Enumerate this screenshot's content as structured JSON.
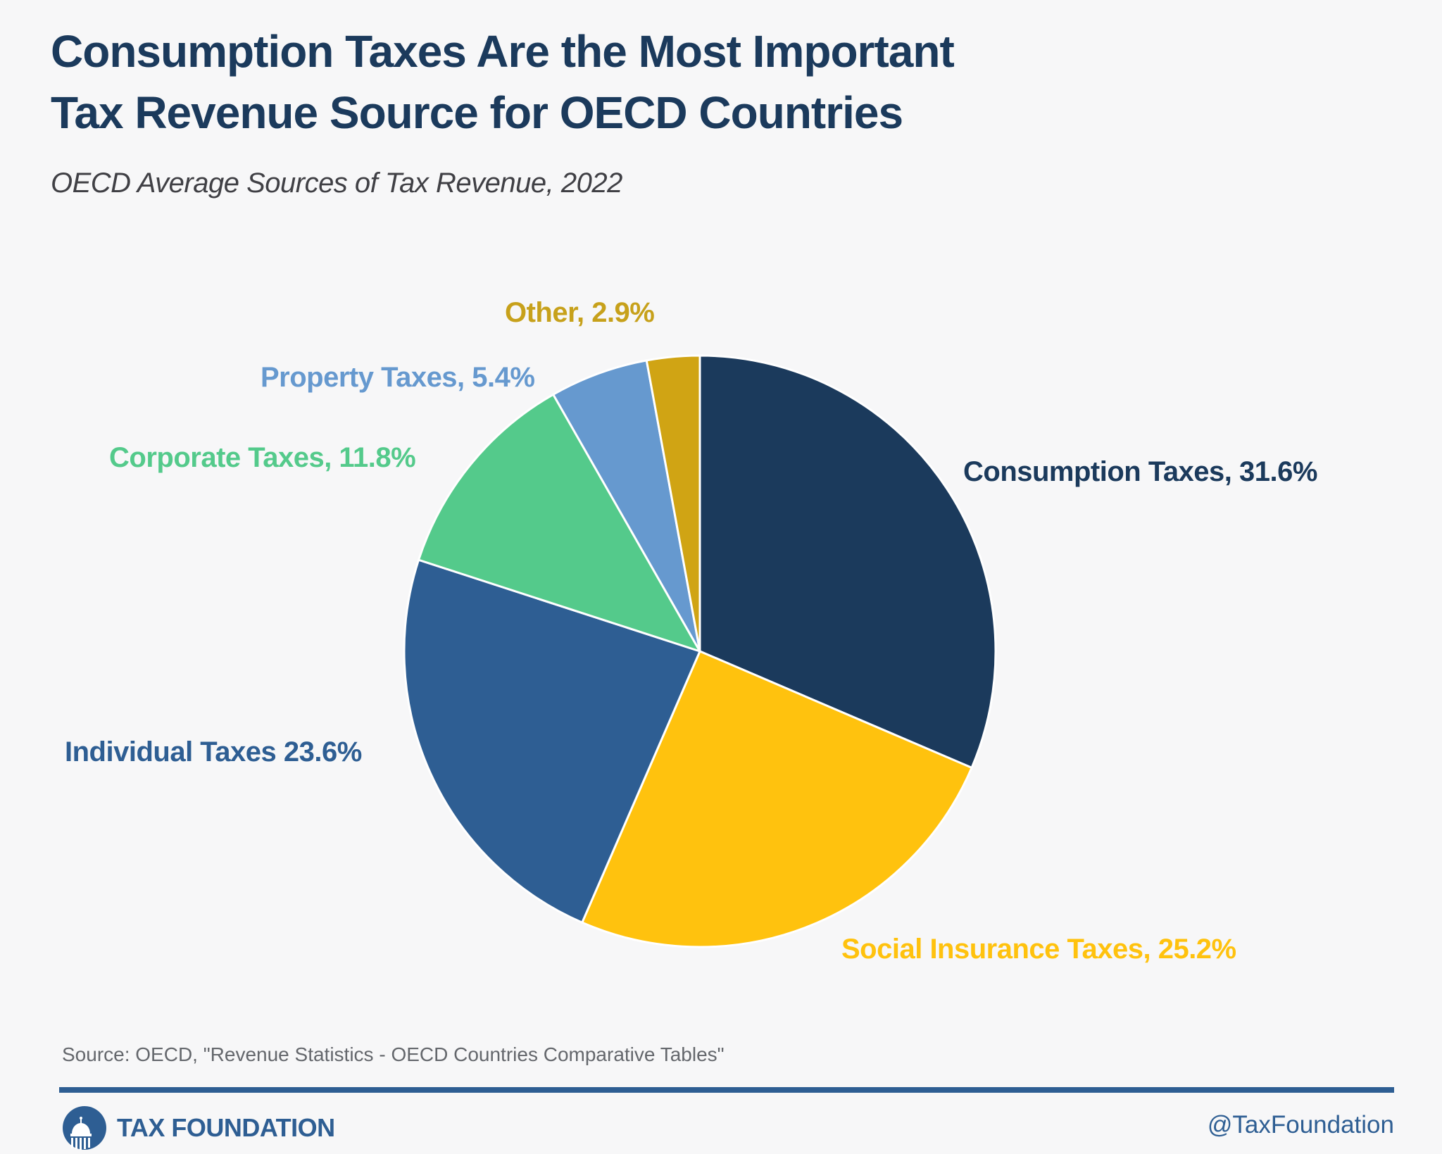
{
  "header": {
    "title_line1": "Consumption Taxes Are the Most Important",
    "title_line2": "Tax Revenue Source for OECD Countries",
    "subtitle": "OECD Average Sources of Tax Revenue, 2022"
  },
  "chart_data": {
    "type": "pie",
    "title": "OECD Average Sources of Tax Revenue, 2022",
    "unit": "percent",
    "start_angle_deg": -90,
    "direction": "clockwise",
    "legend_position": "labels-around-pie",
    "slices": [
      {
        "name": "Consumption Taxes",
        "value": 31.6,
        "display": "Consumption Taxes, 31.6%",
        "color": "#1B3A5C",
        "label_color": "#1B3A5C"
      },
      {
        "name": "Social Insurance Taxes",
        "value": 25.2,
        "display": "Social Insurance Taxes, 25.2%",
        "color": "#FFC20E",
        "label_color": "#FFC20E"
      },
      {
        "name": "Individual Taxes",
        "value": 23.6,
        "display": "Individual Taxes 23.6%",
        "color": "#2E5E93",
        "label_color": "#2E5E93"
      },
      {
        "name": "Corporate Taxes",
        "value": 11.8,
        "display": "Corporate Taxes, 11.8%",
        "color": "#54CA8B",
        "label_color": "#54CA8B"
      },
      {
        "name": "Property Taxes",
        "value": 5.4,
        "display": "Property Taxes, 5.4%",
        "color": "#6699CF",
        "label_color": "#6699CF"
      },
      {
        "name": "Other",
        "value": 2.9,
        "display": "Other, 2.9%",
        "color": "#D0A414",
        "label_color": "#C7A11B"
      }
    ]
  },
  "source": {
    "text": "Source: OECD, \"Revenue Statistics - OECD Countries Comparative Tables\""
  },
  "footer": {
    "brand": "TAX FOUNDATION",
    "handle": "@TaxFoundation",
    "accent_color": "#2E5E93"
  }
}
